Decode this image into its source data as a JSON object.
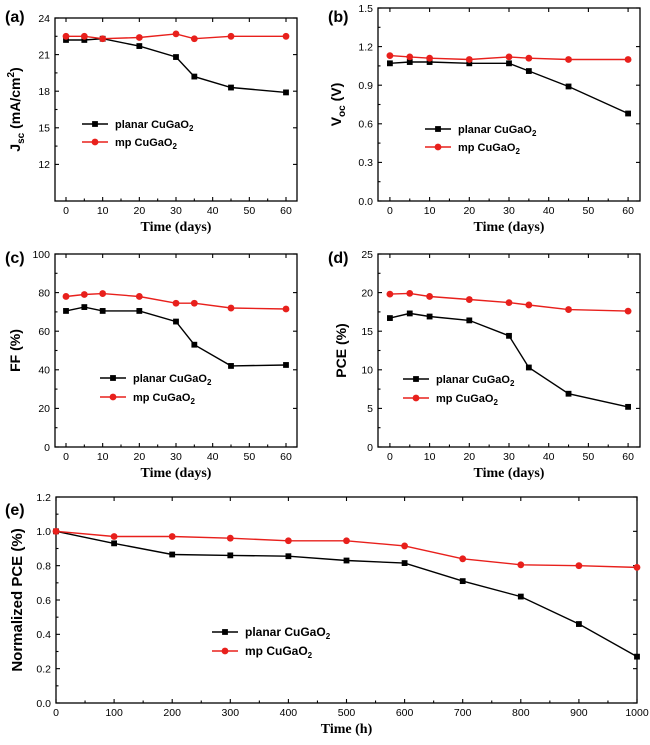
{
  "chart_data": [
    {
      "panel": "(a)",
      "type": "line",
      "xlabel": "Time (days)",
      "ylabel": "J_sc (mA/cm^2)",
      "ylabel_parts": [
        "J",
        "sc",
        " (mA/cm",
        "2",
        ")"
      ],
      "xlim": [
        -3,
        63
      ],
      "ylim": [
        9,
        24
      ],
      "xticks": [
        0,
        10,
        20,
        30,
        40,
        50,
        60
      ],
      "yticks": [
        12,
        15,
        18,
        21,
        24
      ],
      "y_decimals": 0,
      "x_decimals": 0,
      "legend_position": "center-left",
      "series": [
        {
          "name": "planar CuGaO2",
          "label_parts": [
            "planar CuGaO",
            "2"
          ],
          "color": "#000000",
          "marker": "square",
          "x": [
            0,
            5,
            10,
            20,
            30,
            35,
            45,
            60
          ],
          "y": [
            22.2,
            22.2,
            22.3,
            21.7,
            20.8,
            19.2,
            18.3,
            17.9
          ]
        },
        {
          "name": "mp CuGaO2",
          "label_parts": [
            "mp CuGaO",
            "2"
          ],
          "color": "#e8201c",
          "marker": "circle",
          "x": [
            0,
            5,
            10,
            20,
            30,
            35,
            45,
            60
          ],
          "y": [
            22.5,
            22.5,
            22.3,
            22.4,
            22.7,
            22.3,
            22.5,
            22.5
          ]
        }
      ]
    },
    {
      "panel": "(b)",
      "type": "line",
      "xlabel": "Time (days)",
      "ylabel": "V_oc (V)",
      "ylabel_parts": [
        "V",
        "oc",
        " (V)",
        "",
        ""
      ],
      "xlim": [
        -3,
        63
      ],
      "ylim": [
        0.0,
        1.5
      ],
      "xticks": [
        0,
        10,
        20,
        30,
        40,
        50,
        60
      ],
      "yticks": [
        0.0,
        0.3,
        0.6,
        0.9,
        1.2,
        1.5
      ],
      "y_decimals": 1,
      "x_decimals": 0,
      "legend_position": "center-right",
      "series": [
        {
          "name": "planar CuGaO2",
          "label_parts": [
            "planar CuGaO",
            "2"
          ],
          "color": "#000000",
          "marker": "square",
          "x": [
            0,
            5,
            10,
            20,
            30,
            35,
            45,
            60
          ],
          "y": [
            1.07,
            1.08,
            1.08,
            1.07,
            1.07,
            1.01,
            0.89,
            0.68
          ]
        },
        {
          "name": "mp CuGaO2",
          "label_parts": [
            "mp CuGaO",
            "2"
          ],
          "color": "#e8201c",
          "marker": "circle",
          "x": [
            0,
            5,
            10,
            20,
            30,
            35,
            45,
            60
          ],
          "y": [
            1.13,
            1.12,
            1.11,
            1.1,
            1.12,
            1.11,
            1.1,
            1.1
          ]
        }
      ]
    },
    {
      "panel": "(c)",
      "type": "line",
      "xlabel": "Time (days)",
      "ylabel": "FF (%)",
      "ylabel_parts": [
        "FF (%)",
        "",
        "",
        "",
        ""
      ],
      "xlim": [
        -3,
        63
      ],
      "ylim": [
        0,
        100
      ],
      "xticks": [
        0,
        10,
        20,
        30,
        40,
        50,
        60
      ],
      "yticks": [
        0,
        20,
        40,
        60,
        80,
        100
      ],
      "y_decimals": 0,
      "x_decimals": 0,
      "legend_position": "bottom-left",
      "series": [
        {
          "name": "planar CuGaO2",
          "label_parts": [
            "planar CuGaO",
            "2"
          ],
          "color": "#000000",
          "marker": "square",
          "x": [
            0,
            5,
            10,
            20,
            30,
            35,
            45,
            60
          ],
          "y": [
            70.5,
            72.5,
            70.5,
            70.5,
            65.0,
            53.0,
            42.0,
            42.5
          ]
        },
        {
          "name": "mp CuGaO2",
          "label_parts": [
            "mp CuGaO",
            "2"
          ],
          "color": "#e8201c",
          "marker": "circle",
          "x": [
            0,
            5,
            10,
            20,
            30,
            35,
            45,
            60
          ],
          "y": [
            78.0,
            79.0,
            79.5,
            78.0,
            74.5,
            74.5,
            72.0,
            71.5
          ]
        }
      ]
    },
    {
      "panel": "(d)",
      "type": "line",
      "xlabel": "Time (days)",
      "ylabel": "PCE (%)",
      "ylabel_parts": [
        "PCE (%)",
        "",
        "",
        "",
        ""
      ],
      "xlim": [
        -3,
        63
      ],
      "ylim": [
        0,
        25
      ],
      "xticks": [
        0,
        10,
        20,
        30,
        40,
        50,
        60
      ],
      "yticks": [
        0,
        5,
        10,
        15,
        20,
        25
      ],
      "y_decimals": 0,
      "x_decimals": 0,
      "legend_position": "bottom-left",
      "series": [
        {
          "name": "planar CuGaO2",
          "label_parts": [
            "planar CuGaO",
            "2"
          ],
          "color": "#000000",
          "marker": "square",
          "x": [
            0,
            5,
            10,
            20,
            30,
            35,
            45,
            60
          ],
          "y": [
            16.7,
            17.3,
            16.9,
            16.4,
            14.4,
            10.3,
            6.9,
            5.2
          ]
        },
        {
          "name": "mp CuGaO2",
          "label_parts": [
            "mp CuGaO",
            "2"
          ],
          "color": "#e8201c",
          "marker": "circle",
          "x": [
            0,
            5,
            10,
            20,
            30,
            35,
            45,
            60
          ],
          "y": [
            19.8,
            19.9,
            19.5,
            19.1,
            18.7,
            18.4,
            17.8,
            17.6
          ]
        }
      ]
    },
    {
      "panel": "(e)",
      "type": "line",
      "xlabel": "Time (h)",
      "ylabel": "Normalized PCE (%)",
      "ylabel_parts": [
        "Normalized PCE (%)",
        "",
        "",
        "",
        ""
      ],
      "xlim": [
        0,
        1000
      ],
      "ylim": [
        0.0,
        1.2
      ],
      "xticks": [
        0,
        100,
        200,
        300,
        400,
        500,
        600,
        700,
        800,
        900,
        1000
      ],
      "yticks": [
        0.0,
        0.2,
        0.4,
        0.6,
        0.8,
        1.0,
        1.2
      ],
      "y_decimals": 1,
      "x_decimals": 0,
      "legend_position": "center-left",
      "series": [
        {
          "name": "planar CuGaO2",
          "label_parts": [
            "planar CuGaO",
            "2"
          ],
          "color": "#000000",
          "marker": "square",
          "x": [
            0,
            100,
            200,
            300,
            400,
            500,
            600,
            700,
            800,
            900,
            1000
          ],
          "y": [
            1.0,
            0.93,
            0.865,
            0.86,
            0.855,
            0.83,
            0.815,
            0.71,
            0.62,
            0.46,
            0.27
          ]
        },
        {
          "name": "mp CuGaO2",
          "label_parts": [
            "mp CuGaO",
            "2"
          ],
          "color": "#e8201c",
          "marker": "circle",
          "x": [
            0,
            100,
            200,
            300,
            400,
            500,
            600,
            700,
            800,
            900,
            1000
          ],
          "y": [
            1.0,
            0.97,
            0.97,
            0.96,
            0.945,
            0.945,
            0.915,
            0.84,
            0.805,
            0.8,
            0.79
          ]
        }
      ]
    }
  ]
}
